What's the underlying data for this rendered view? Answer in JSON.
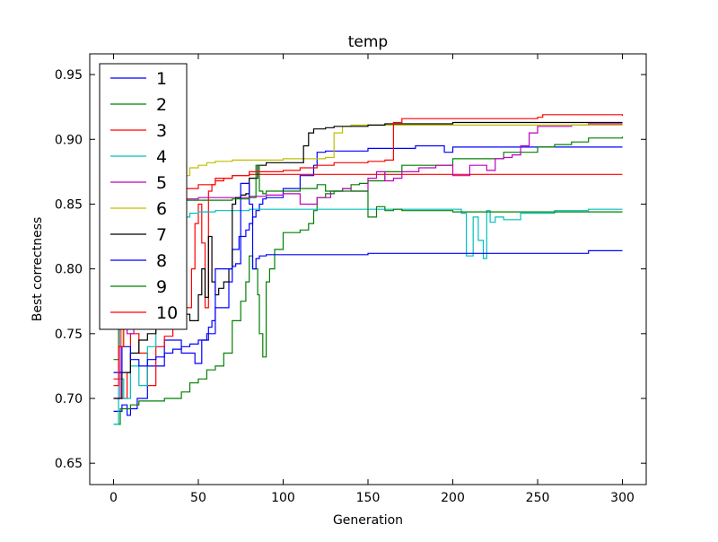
{
  "chart_data": {
    "type": "line",
    "title": "temp",
    "xlabel": "Generation",
    "ylabel": "Best correctness",
    "xlim": [
      -14,
      314
    ],
    "ylim": [
      0.6335,
      0.966
    ],
    "xticks": [
      "0",
      "50",
      "100",
      "150",
      "200",
      "250",
      "300"
    ],
    "xtick_values": [
      0,
      50,
      100,
      150,
      200,
      250,
      300
    ],
    "yticks": [
      "0.65",
      "0.70",
      "0.75",
      "0.80",
      "0.85",
      "0.90",
      "0.95"
    ],
    "ytick_values": [
      0.65,
      0.7,
      0.75,
      0.8,
      0.85,
      0.9,
      0.95
    ],
    "grid": false,
    "legend_position": "top-left",
    "series": [
      {
        "name": "1",
        "color": "#0000ff",
        "x": [
          0,
          5,
          8,
          10,
          14,
          20,
          30,
          40,
          48,
          52,
          56,
          58,
          60,
          65,
          68,
          70,
          74,
          78,
          80,
          82,
          84,
          86,
          88,
          90,
          100,
          110,
          118,
          120,
          125,
          140,
          150,
          175,
          178,
          195,
          200,
          250,
          300
        ],
        "y": [
          0.69,
          0.695,
          0.687,
          0.692,
          0.7,
          0.725,
          0.745,
          0.735,
          0.727,
          0.745,
          0.755,
          0.76,
          0.77,
          0.77,
          0.79,
          0.815,
          0.825,
          0.83,
          0.835,
          0.84,
          0.845,
          0.85,
          0.854,
          0.855,
          0.862,
          0.872,
          0.88,
          0.89,
          0.891,
          0.891,
          0.893,
          0.893,
          0.895,
          0.89,
          0.894,
          0.894,
          0.894
        ]
      },
      {
        "name": "2",
        "color": "#008000",
        "x": [
          0,
          4,
          10,
          15,
          20,
          30,
          40,
          45,
          50,
          55,
          60,
          65,
          70,
          75,
          78,
          80,
          82,
          85,
          86,
          88,
          90,
          92,
          95,
          100,
          110,
          115,
          118,
          120,
          125,
          130,
          135,
          140,
          145,
          150,
          160,
          170,
          200,
          230,
          250,
          260,
          270,
          280,
          300
        ],
        "y": [
          0.68,
          0.692,
          0.695,
          0.698,
          0.698,
          0.7,
          0.705,
          0.712,
          0.715,
          0.722,
          0.725,
          0.735,
          0.76,
          0.775,
          0.79,
          0.81,
          0.8,
          0.78,
          0.75,
          0.732,
          0.79,
          0.8,
          0.815,
          0.828,
          0.83,
          0.835,
          0.845,
          0.855,
          0.858,
          0.86,
          0.862,
          0.865,
          0.866,
          0.868,
          0.875,
          0.88,
          0.885,
          0.89,
          0.894,
          0.896,
          0.898,
          0.901,
          0.902
        ]
      },
      {
        "name": "3",
        "color": "#ff0000",
        "x": [
          0,
          3,
          5,
          8,
          10,
          15,
          20,
          25,
          30,
          35,
          40,
          43,
          46,
          48,
          50,
          52,
          54,
          56,
          58,
          60,
          65,
          70,
          80,
          90,
          100,
          120,
          130,
          140,
          150,
          153,
          160,
          200,
          250,
          300
        ],
        "y": [
          0.715,
          0.74,
          0.7,
          0.72,
          0.75,
          0.735,
          0.71,
          0.74,
          0.748,
          0.755,
          0.76,
          0.77,
          0.8,
          0.835,
          0.85,
          0.82,
          0.77,
          0.86,
          0.865,
          0.868,
          0.87,
          0.872,
          0.873,
          0.873,
          0.873,
          0.873,
          0.873,
          0.873,
          0.873,
          0.873,
          0.873,
          0.873,
          0.873,
          0.873
        ]
      },
      {
        "name": "4",
        "color": "#00bfbf",
        "x": [
          0,
          3,
          6,
          10,
          15,
          20,
          25,
          30,
          35,
          40,
          45,
          50,
          60,
          80,
          100,
          150,
          200,
          205,
          208,
          212,
          215,
          218,
          220,
          222,
          225,
          230,
          240,
          260,
          280,
          300
        ],
        "y": [
          0.68,
          0.715,
          0.7,
          0.725,
          0.71,
          0.74,
          0.78,
          0.82,
          0.835,
          0.84,
          0.843,
          0.844,
          0.845,
          0.846,
          0.846,
          0.846,
          0.846,
          0.843,
          0.81,
          0.84,
          0.822,
          0.808,
          0.845,
          0.836,
          0.84,
          0.838,
          0.843,
          0.845,
          0.846,
          0.846
        ]
      },
      {
        "name": "5",
        "color": "#bf00bf",
        "x": [
          0,
          4,
          8,
          12,
          16,
          20,
          25,
          30,
          40,
          50,
          60,
          70,
          80,
          90,
          100,
          110,
          120,
          128,
          135,
          140,
          150,
          155,
          160,
          165,
          170,
          180,
          190,
          200,
          210,
          220,
          225,
          230,
          235,
          240,
          245,
          250,
          260,
          270,
          280,
          300
        ],
        "y": [
          0.7,
          0.76,
          0.75,
          0.79,
          0.81,
          0.835,
          0.848,
          0.852,
          0.854,
          0.855,
          0.855,
          0.855,
          0.856,
          0.857,
          0.858,
          0.85,
          0.855,
          0.86,
          0.862,
          0.86,
          0.87,
          0.875,
          0.868,
          0.87,
          0.875,
          0.878,
          0.88,
          0.872,
          0.88,
          0.876,
          0.885,
          0.886,
          0.888,
          0.895,
          0.905,
          0.91,
          0.91,
          0.911,
          0.912,
          0.912
        ]
      },
      {
        "name": "6",
        "color": "#bfbf00",
        "x": [
          0,
          5,
          10,
          15,
          20,
          25,
          30,
          35,
          40,
          45,
          50,
          55,
          60,
          70,
          80,
          90,
          100,
          110,
          120,
          125,
          130,
          135,
          140,
          150,
          160,
          180,
          200,
          250,
          300
        ],
        "y": [
          0.72,
          0.76,
          0.8,
          0.83,
          0.845,
          0.855,
          0.86,
          0.865,
          0.872,
          0.878,
          0.88,
          0.882,
          0.883,
          0.884,
          0.884,
          0.884,
          0.885,
          0.885,
          0.885,
          0.886,
          0.905,
          0.91,
          0.911,
          0.911,
          0.911,
          0.911,
          0.911,
          0.911,
          0.911
        ]
      },
      {
        "name": "7",
        "color": "#000000",
        "x": [
          0,
          5,
          10,
          15,
          20,
          25,
          30,
          35,
          40,
          45,
          50,
          52,
          54,
          56,
          58,
          60,
          62,
          65,
          68,
          70,
          72,
          75,
          78,
          80,
          85,
          90,
          100,
          110,
          112,
          115,
          118,
          120,
          125,
          130,
          140,
          150,
          160,
          200,
          250,
          300
        ],
        "y": [
          0.7,
          0.72,
          0.735,
          0.745,
          0.75,
          0.755,
          0.76,
          0.76,
          0.765,
          0.76,
          0.78,
          0.8,
          0.778,
          0.825,
          0.79,
          0.78,
          0.785,
          0.79,
          0.8,
          0.85,
          0.855,
          0.857,
          0.858,
          0.87,
          0.88,
          0.882,
          0.882,
          0.882,
          0.895,
          0.905,
          0.908,
          0.908,
          0.909,
          0.91,
          0.91,
          0.911,
          0.912,
          0.913,
          0.913,
          0.913
        ]
      },
      {
        "name": "8",
        "color": "#0000ff",
        "x": [
          0,
          5,
          10,
          15,
          20,
          25,
          30,
          35,
          40,
          45,
          50,
          55,
          60,
          62,
          66,
          70,
          72,
          75,
          78,
          80,
          82,
          84,
          86,
          90,
          100,
          150,
          200,
          250,
          280,
          300
        ],
        "y": [
          0.72,
          0.74,
          0.73,
          0.725,
          0.73,
          0.732,
          0.735,
          0.738,
          0.74,
          0.742,
          0.745,
          0.75,
          0.8,
          0.8,
          0.8,
          0.802,
          0.804,
          0.866,
          0.866,
          0.85,
          0.8,
          0.808,
          0.81,
          0.811,
          0.811,
          0.812,
          0.812,
          0.812,
          0.814,
          0.814
        ]
      },
      {
        "name": "9",
        "color": "#008000",
        "x": [
          0,
          3,
          6,
          10,
          15,
          20,
          30,
          40,
          50,
          60,
          70,
          80,
          84,
          86,
          88,
          90,
          100,
          110,
          115,
          120,
          125,
          130,
          140,
          150,
          155,
          160,
          165,
          170,
          200,
          250,
          300
        ],
        "y": [
          0.73,
          0.76,
          0.8,
          0.84,
          0.85,
          0.852,
          0.852,
          0.853,
          0.853,
          0.853,
          0.854,
          0.855,
          0.88,
          0.86,
          0.858,
          0.86,
          0.86,
          0.862,
          0.862,
          0.865,
          0.86,
          0.86,
          0.86,
          0.84,
          0.848,
          0.845,
          0.846,
          0.845,
          0.844,
          0.844,
          0.844
        ]
      },
      {
        "name": "10",
        "color": "#ff0000",
        "x": [
          0,
          3,
          6,
          10,
          15,
          20,
          25,
          30,
          40,
          50,
          60,
          70,
          80,
          90,
          100,
          110,
          120,
          130,
          140,
          150,
          160,
          165,
          170,
          200,
          250,
          253,
          300
        ],
        "y": [
          0.71,
          0.74,
          0.78,
          0.82,
          0.84,
          0.85,
          0.855,
          0.86,
          0.862,
          0.865,
          0.87,
          0.872,
          0.875,
          0.875,
          0.876,
          0.878,
          0.88,
          0.882,
          0.882,
          0.883,
          0.884,
          0.913,
          0.916,
          0.916,
          0.917,
          0.919,
          0.918
        ]
      }
    ]
  }
}
